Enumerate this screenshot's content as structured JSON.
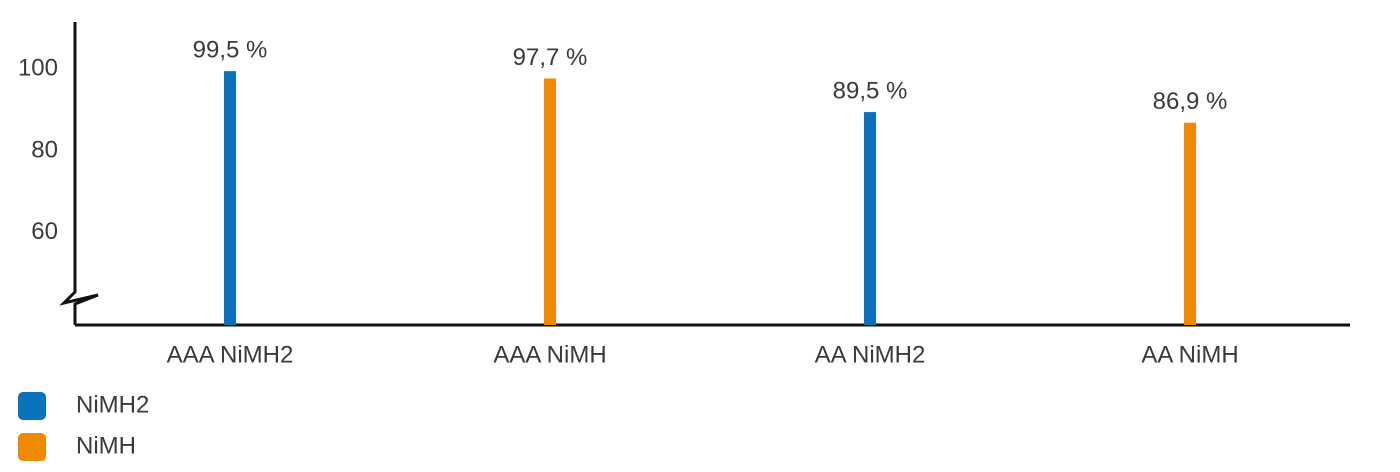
{
  "chart_data": {
    "type": "bar",
    "categories": [
      "AAA NiMH2",
      "AAA NiMH",
      "AA NiMH2",
      "AA NiMH"
    ],
    "series": [
      {
        "name": "NiMH2",
        "color": "#0a72bb",
        "values": [
          99.5,
          null,
          89.5,
          null
        ],
        "value_labels": [
          "99,5 %",
          null,
          "89,5 %",
          null
        ]
      },
      {
        "name": "NiMH",
        "color": "#ef8a00",
        "values": [
          null,
          97.7,
          null,
          86.9
        ],
        "value_labels": [
          null,
          "97,7 %",
          null,
          "86,9 %"
        ]
      }
    ],
    "ylim": [
      37.5,
      111.5
    ],
    "yticks": [
      60,
      80,
      100
    ],
    "grid": false
  }
}
